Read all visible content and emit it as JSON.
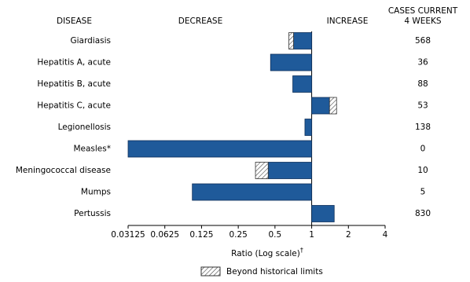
{
  "chart_data": {
    "type": "bar",
    "orientation": "horizontal",
    "headers": {
      "disease": "DISEASE",
      "decrease": "DECREASE",
      "increase": "INCREASE",
      "cases": [
        "CASES CURRENT",
        "4 WEEKS"
      ]
    },
    "categories": [
      "Giardiasis",
      "Hepatitis A, acute",
      "Hepatitis B, acute",
      "Hepatitis C, acute",
      "Legionellosis",
      "Measles*",
      "Meningococcal disease",
      "Mumps",
      "Pertussis"
    ],
    "values": [
      0.65,
      0.46,
      0.7,
      1.6,
      0.88,
      0.03125,
      0.346,
      0.105,
      1.53
    ],
    "historical_limits": [
      0.71,
      null,
      null,
      1.4,
      null,
      null,
      0.44,
      null,
      null
    ],
    "cases": [
      568,
      36,
      88,
      53,
      138,
      0,
      10,
      5,
      830
    ],
    "color": "#1f5a9a",
    "log_scale": true,
    "base_value": 1,
    "xlim": [
      0.03125,
      4
    ],
    "xticks": [
      0.03125,
      0.0625,
      0.125,
      0.25,
      0.5,
      1,
      2,
      4
    ],
    "xlabel": "Ratio (Log scale)",
    "xlabel_mark": "†",
    "legend": "Beyond historical limits"
  }
}
